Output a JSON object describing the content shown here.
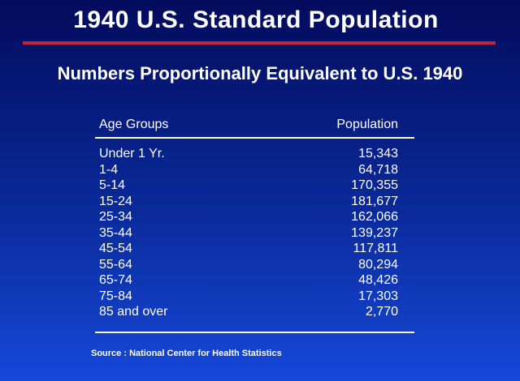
{
  "header": {
    "title": "1940 U.S. Standard Population",
    "subtitle": "Numbers Proportionally Equivalent to U.S. 1940"
  },
  "table": {
    "columns": [
      "Age Groups",
      "Population"
    ],
    "rows": [
      [
        "Under 1 Yr.",
        "15,343"
      ],
      [
        "1-4",
        "64,718"
      ],
      [
        "5-14",
        "170,355"
      ],
      [
        "15-24",
        "181,677"
      ],
      [
        "25-34",
        "162,066"
      ],
      [
        "35-44",
        "139,237"
      ],
      [
        "45-54",
        "117,811"
      ],
      [
        "55-64",
        "80,294"
      ],
      [
        "65-74",
        "48,426"
      ],
      [
        "75-84",
        "17,303"
      ],
      [
        "85 and over",
        "2,770"
      ]
    ]
  },
  "footer": {
    "source": "Source : National Center for Health Statistics"
  }
}
